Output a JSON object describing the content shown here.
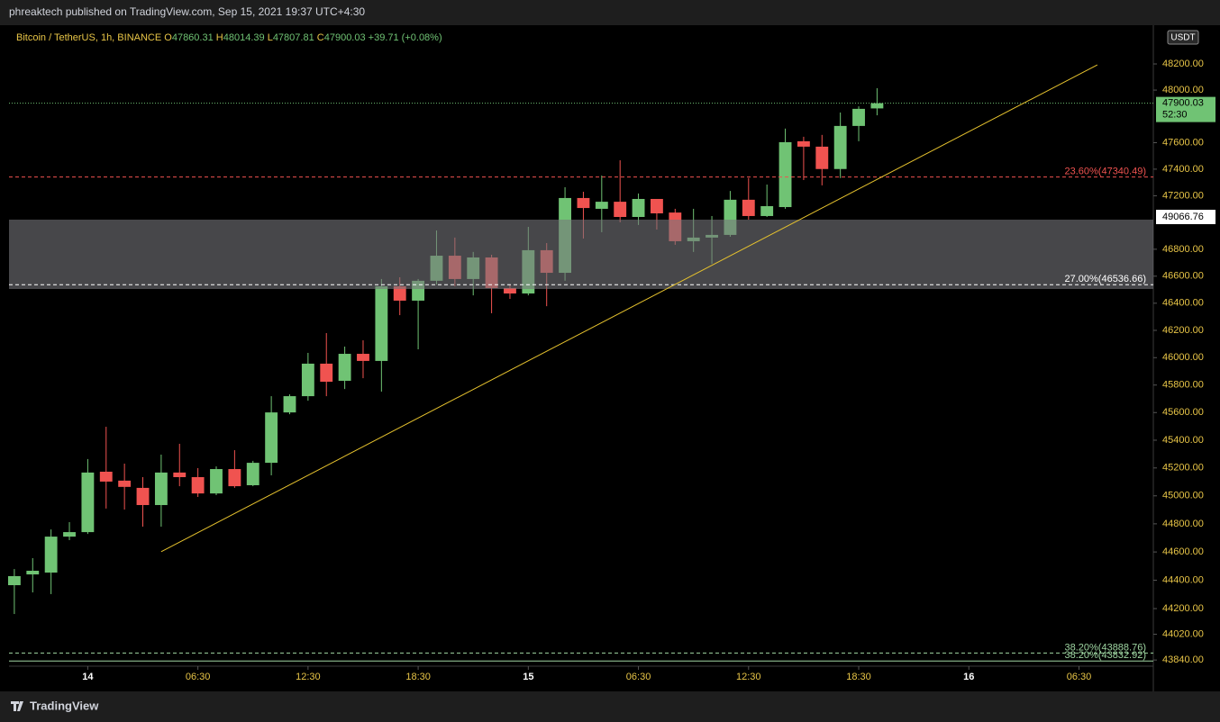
{
  "header": "phreaktech published on TradingView.com, Sep 15, 2021 19:37 UTC+4:30",
  "footer": "TradingView",
  "chart_data": {
    "type": "candlestick",
    "symbol": "Bitcoin / TetherUS, 1h, BINANCE",
    "ohlc_labels": [
      "O",
      "H",
      "L",
      "C"
    ],
    "change": "+39.71 (+0.08%)",
    "currency": "USDT",
    "countdown": "52:30",
    "crosshair_label": "49066.76",
    "log": true,
    "grid": false,
    "up_color": "#70c374",
    "down_color": "#f05350",
    "x": [
      0,
      1,
      2,
      3,
      4,
      5,
      6,
      7,
      8,
      9,
      10,
      11,
      12,
      13,
      14,
      15,
      16,
      17,
      18,
      19,
      20,
      21,
      22,
      23,
      24,
      25,
      26,
      27,
      28,
      29,
      30,
      31,
      32,
      33,
      34,
      35,
      36,
      37,
      38,
      39,
      40,
      41,
      42,
      43,
      44,
      45,
      46,
      47
    ],
    "open": [
      44365,
      44441,
      44454,
      44709,
      44741,
      45173,
      45109,
      45057,
      44934,
      45167,
      45134,
      45017,
      45192,
      45076,
      45237,
      45601,
      45719,
      45956,
      45831,
      46028,
      45976,
      46525,
      46419,
      46566,
      46752,
      46579,
      46739,
      46512,
      46472,
      46793,
      46625,
      47183,
      47102,
      47155,
      47041,
      47176,
      47074,
      46860,
      46887,
      46907,
      47170,
      47048,
      47115,
      47611,
      47570,
      47401,
      47727,
      47860.31
    ],
    "high": [
      44479,
      44556,
      44760,
      44812,
      45264,
      45497,
      45231,
      45134,
      45296,
      45374,
      45199,
      45211,
      45328,
      45251,
      45719,
      45732,
      46035,
      46180,
      46081,
      46127,
      46579,
      46592,
      46579,
      46940,
      46887,
      46780,
      46759,
      46538,
      46967,
      46846,
      47264,
      47230,
      47352,
      47467,
      47217,
      47176,
      47102,
      47102,
      47048,
      47236,
      47333,
      47284,
      47707,
      47645,
      47659,
      47829,
      47876,
      48014.39
    ],
    "low": [
      44162,
      44314,
      44302,
      44684,
      44728,
      44909,
      44902,
      44780,
      44780,
      45069,
      44992,
      45005,
      45057,
      45069,
      45147,
      45588,
      45686,
      45719,
      45771,
      45850,
      45752,
      46312,
      46061,
      46538,
      46525,
      46458,
      46326,
      46432,
      46458,
      46378,
      46566,
      46880,
      46927,
      47001,
      46981,
      46947,
      46833,
      46780,
      46692,
      46893,
      47021,
      47041,
      47102,
      47318,
      47278,
      47333,
      47611,
      47807.81
    ],
    "close": [
      44429,
      44467,
      44709,
      44741,
      45167,
      45102,
      45064,
      44934,
      45167,
      45134,
      45017,
      45192,
      45069,
      45237,
      45601,
      45719,
      45956,
      45824,
      46028,
      45976,
      46525,
      46419,
      46566,
      46752,
      46579,
      46739,
      46512,
      46472,
      46793,
      46625,
      47183,
      47108,
      47155,
      47041,
      47176,
      47068,
      46860,
      46887,
      46907,
      47170,
      47048,
      47122,
      47604,
      47570,
      47401,
      47727,
      47857,
      47900.03
    ],
    "xlim": [
      -0.29,
      62.05
    ],
    "xticks": [
      {
        "value": 4,
        "label": "14"
      },
      {
        "value": 10,
        "label": "06:30"
      },
      {
        "value": 16,
        "label": "12:30"
      },
      {
        "value": 22,
        "label": "18:30"
      },
      {
        "value": 28,
        "label": "15"
      },
      {
        "value": 34,
        "label": "06:30"
      },
      {
        "value": 40,
        "label": "12:30"
      },
      {
        "value": 46,
        "label": "18:30"
      },
      {
        "value": 52,
        "label": "16"
      },
      {
        "value": 58,
        "label": "06:30"
      }
    ],
    "ylim": [
      43797,
      48484
    ],
    "yticks": [
      {
        "value": 48200,
        "label": "48200.00"
      },
      {
        "value": 48000,
        "label": "48000.00"
      },
      {
        "value": 47600,
        "label": "47600.00"
      },
      {
        "value": 47400,
        "label": "47400.00"
      },
      {
        "value": 47200,
        "label": "47200.00"
      },
      {
        "value": 46800,
        "label": "46800.00"
      },
      {
        "value": 46600,
        "label": "46600.00"
      },
      {
        "value": 46400,
        "label": "46400.00"
      },
      {
        "value": 46200,
        "label": "46200.00"
      },
      {
        "value": 46000,
        "label": "46000.00"
      },
      {
        "value": 45800,
        "label": "45800.00"
      },
      {
        "value": 45600,
        "label": "45600.00"
      },
      {
        "value": 45400,
        "label": "45400.00"
      },
      {
        "value": 45200,
        "label": "45200.00"
      },
      {
        "value": 45000,
        "label": "45000.00"
      },
      {
        "value": 44800,
        "label": "44800.00"
      },
      {
        "value": 44600,
        "label": "44600.00"
      },
      {
        "value": 44400,
        "label": "44400.00"
      },
      {
        "value": 44200,
        "label": "44200.00"
      },
      {
        "value": 44020,
        "label": "44020.00"
      },
      {
        "value": 43840,
        "label": "43840.00"
      }
    ],
    "zone": {
      "from": 46505,
      "to": 47021
    },
    "trendline": {
      "x": [
        8,
        59
      ],
      "values": [
        44602,
        48193
      ],
      "color": "#e6c22e"
    },
    "levels": [
      {
        "label": "23.60%(47340.49)",
        "value": 47340.49,
        "color": "#f05350",
        "dash": true
      },
      {
        "label": "27.00%(46536.66)",
        "value": 46536.66,
        "color": "#ffffff",
        "dash": true
      },
      {
        "label": "38.20%(43888.76)",
        "value": 43888.76,
        "color": "#9fd6a2",
        "dash": true
      },
      {
        "label": "38.20%(43832.92)",
        "value": 43832.92,
        "color": "#9fd6a2",
        "dash": false
      }
    ]
  }
}
